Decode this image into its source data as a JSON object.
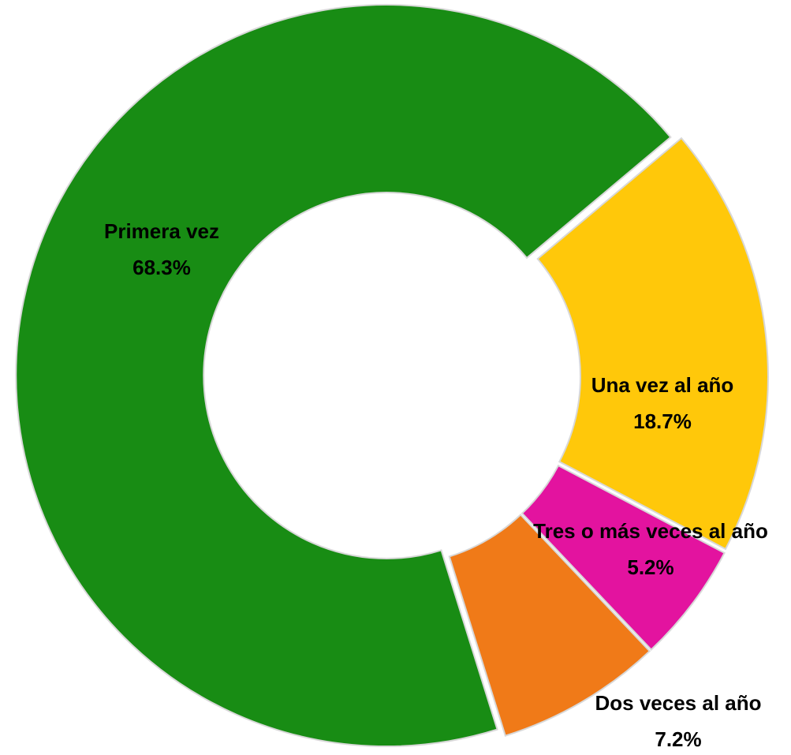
{
  "chart_data": {
    "type": "donut",
    "categories": [
      "Una vez al año",
      "Tres o más veces al año",
      "Dos veces al año",
      "Primera vez"
    ],
    "values": [
      18.7,
      5.2,
      7.2,
      68.3
    ],
    "value_labels": [
      "18.7%",
      "5.2%",
      "7.2%",
      "68.3%"
    ],
    "colors": [
      "#ffc80a",
      "#e3139f",
      "#f07a18",
      "#188c14"
    ]
  }
}
